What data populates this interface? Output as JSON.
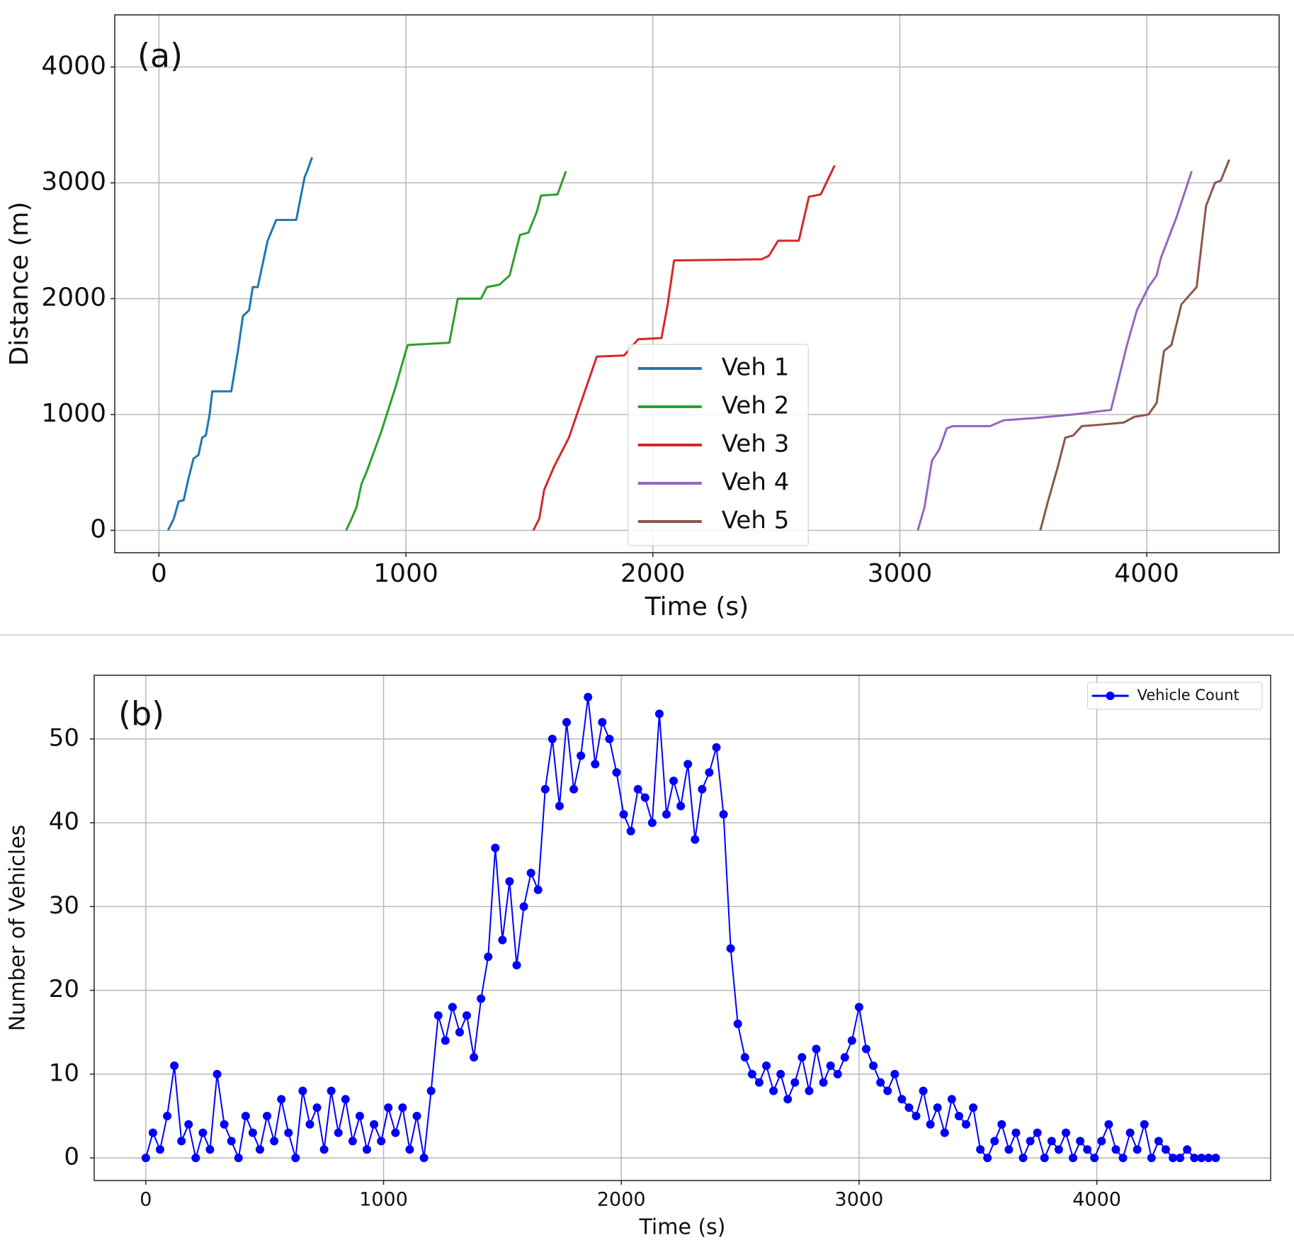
{
  "chart_data": [
    {
      "type": "line",
      "annotation": "(a)",
      "xlabel": "Time (s)",
      "ylabel": "Distance (m)",
      "xlim": [
        -179,
        4536
      ],
      "ylim": [
        -193,
        4450
      ],
      "xticks": [
        0,
        1000,
        2000,
        3000,
        4000
      ],
      "yticks": [
        0,
        1000,
        2000,
        3000,
        4000
      ],
      "grid": true,
      "legend": "lower center",
      "series": [
        {
          "name": "Veh 1",
          "color": "#1f77b4",
          "x": [
            37,
            60,
            80,
            100,
            120,
            140,
            160,
            175,
            190,
            205,
            216,
            293,
            320,
            340,
            365,
            380,
            400,
            420,
            440,
            475,
            556,
            590,
            600,
            620
          ],
          "values": [
            0,
            100,
            250,
            260,
            450,
            620,
            650,
            800,
            820,
            1000,
            1200,
            1200,
            1550,
            1850,
            1900,
            2100,
            2100,
            2300,
            2500,
            2680,
            2680,
            3050,
            3100,
            3220
          ]
        },
        {
          "name": "Veh 2",
          "color": "#2ca02c",
          "x": [
            758,
            780,
            800,
            820,
            840,
            900,
            960,
            1000,
            1008,
            1176,
            1210,
            1304,
            1328,
            1378,
            1420,
            1462,
            1496,
            1530,
            1547,
            1614,
            1648
          ],
          "values": [
            0,
            100,
            200,
            400,
            500,
            850,
            1250,
            1550,
            1600,
            1620,
            2000,
            2000,
            2100,
            2120,
            2200,
            2550,
            2570,
            2750,
            2890,
            2900,
            3100
          ]
        },
        {
          "name": "Veh 3",
          "color": "#d62728",
          "x": [
            1516,
            1540,
            1560,
            1600,
            1660,
            1773,
            1884,
            1920,
            1941,
            2035,
            2060,
            2086,
            2440,
            2470,
            2507,
            2591,
            2632,
            2680,
            2736
          ],
          "values": [
            0,
            100,
            350,
            550,
            800,
            1500,
            1510,
            1600,
            1650,
            1660,
            1950,
            2330,
            2340,
            2370,
            2500,
            2500,
            2880,
            2900,
            3150
          ]
        },
        {
          "name": "Veh 4",
          "color": "#9467bd",
          "x": [
            3073,
            3100,
            3130,
            3160,
            3190,
            3215,
            3366,
            3420,
            3550,
            3700,
            3855,
            3920,
            3960,
            4007,
            4040,
            4057,
            4120,
            4182
          ],
          "values": [
            0,
            200,
            600,
            700,
            880,
            900,
            900,
            950,
            970,
            1000,
            1040,
            1600,
            1900,
            2100,
            2200,
            2350,
            2700,
            3100
          ]
        },
        {
          "name": "Veh 5",
          "color": "#8c564b",
          "x": [
            3569,
            3600,
            3640,
            3670,
            3703,
            3737,
            3800,
            3906,
            3950,
            4007,
            4040,
            4070,
            4100,
            4140,
            4202,
            4240,
            4276,
            4300,
            4334
          ],
          "values": [
            0,
            250,
            550,
            800,
            820,
            900,
            910,
            930,
            980,
            1000,
            1100,
            1550,
            1600,
            1950,
            2100,
            2800,
            3000,
            3020,
            3200
          ]
        }
      ]
    },
    {
      "type": "line",
      "annotation": "(b)",
      "xlabel": "Time (s)",
      "ylabel": "Number of Vehicles",
      "xlim": [
        -217,
        4731
      ],
      "ylim": [
        -2.7,
        57.6
      ],
      "xticks": [
        0,
        1000,
        2000,
        3000,
        4000
      ],
      "yticks": [
        0,
        10,
        20,
        30,
        40,
        50
      ],
      "grid": true,
      "legend": "upper right",
      "series": [
        {
          "name": "Vehicle Count",
          "color": "#0000ff",
          "marker": "o",
          "x": [
            0,
            30,
            60,
            90,
            120,
            150,
            180,
            210,
            240,
            270,
            300,
            330,
            360,
            390,
            420,
            450,
            480,
            510,
            540,
            570,
            600,
            630,
            660,
            690,
            720,
            750,
            780,
            810,
            840,
            870,
            900,
            930,
            960,
            990,
            1020,
            1050,
            1080,
            1110,
            1140,
            1170,
            1200,
            1230,
            1260,
            1290,
            1320,
            1350,
            1380,
            1410,
            1440,
            1470,
            1500,
            1530,
            1560,
            1590,
            1620,
            1650,
            1680,
            1710,
            1740,
            1770,
            1800,
            1830,
            1860,
            1890,
            1920,
            1950,
            1980,
            2010,
            2040,
            2070,
            2100,
            2130,
            2160,
            2190,
            2220,
            2250,
            2280,
            2310,
            2340,
            2370,
            2400,
            2430,
            2460,
            2490,
            2520,
            2550,
            2580,
            2610,
            2640,
            2670,
            2700,
            2730,
            2760,
            2790,
            2820,
            2850,
            2880,
            2910,
            2940,
            2970,
            3000,
            3030,
            3060,
            3090,
            3120,
            3150,
            3180,
            3210,
            3240,
            3270,
            3300,
            3330,
            3360,
            3390,
            3420,
            3450,
            3480,
            3510,
            3540,
            3570,
            3600,
            3630,
            3660,
            3690,
            3720,
            3750,
            3780,
            3810,
            3840,
            3870,
            3900,
            3930,
            3960,
            3990,
            4020,
            4050,
            4080,
            4110,
            4140,
            4170,
            4200,
            4230,
            4260,
            4290,
            4320,
            4350,
            4380,
            4410,
            4440,
            4470,
            4500
          ],
          "values": [
            0,
            3,
            1,
            5,
            11,
            2,
            4,
            0,
            3,
            1,
            10,
            4,
            2,
            0,
            5,
            3,
            1,
            5,
            2,
            7,
            3,
            0,
            8,
            4,
            6,
            1,
            8,
            3,
            7,
            2,
            5,
            1,
            4,
            2,
            6,
            3,
            6,
            1,
            5,
            0,
            8,
            17,
            14,
            18,
            15,
            17,
            12,
            19,
            24,
            37,
            26,
            33,
            23,
            30,
            34,
            32,
            44,
            50,
            42,
            52,
            44,
            48,
            55,
            47,
            52,
            50,
            46,
            41,
            39,
            44,
            43,
            40,
            53,
            41,
            45,
            42,
            47,
            38,
            44,
            46,
            49,
            41,
            25,
            16,
            12,
            10,
            9,
            11,
            8,
            10,
            7,
            9,
            12,
            8,
            13,
            9,
            11,
            10,
            12,
            14,
            18,
            13,
            11,
            9,
            8,
            10,
            7,
            6,
            5,
            8,
            4,
            6,
            3,
            7,
            5,
            4,
            6,
            1,
            0,
            2,
            4,
            1,
            3,
            0,
            2,
            3,
            0,
            2,
            1,
            3,
            0,
            2,
            1,
            0,
            2,
            4,
            1,
            0,
            3,
            1,
            4,
            0,
            2,
            1,
            0,
            0,
            1,
            0,
            0,
            0,
            0
          ]
        }
      ]
    }
  ]
}
